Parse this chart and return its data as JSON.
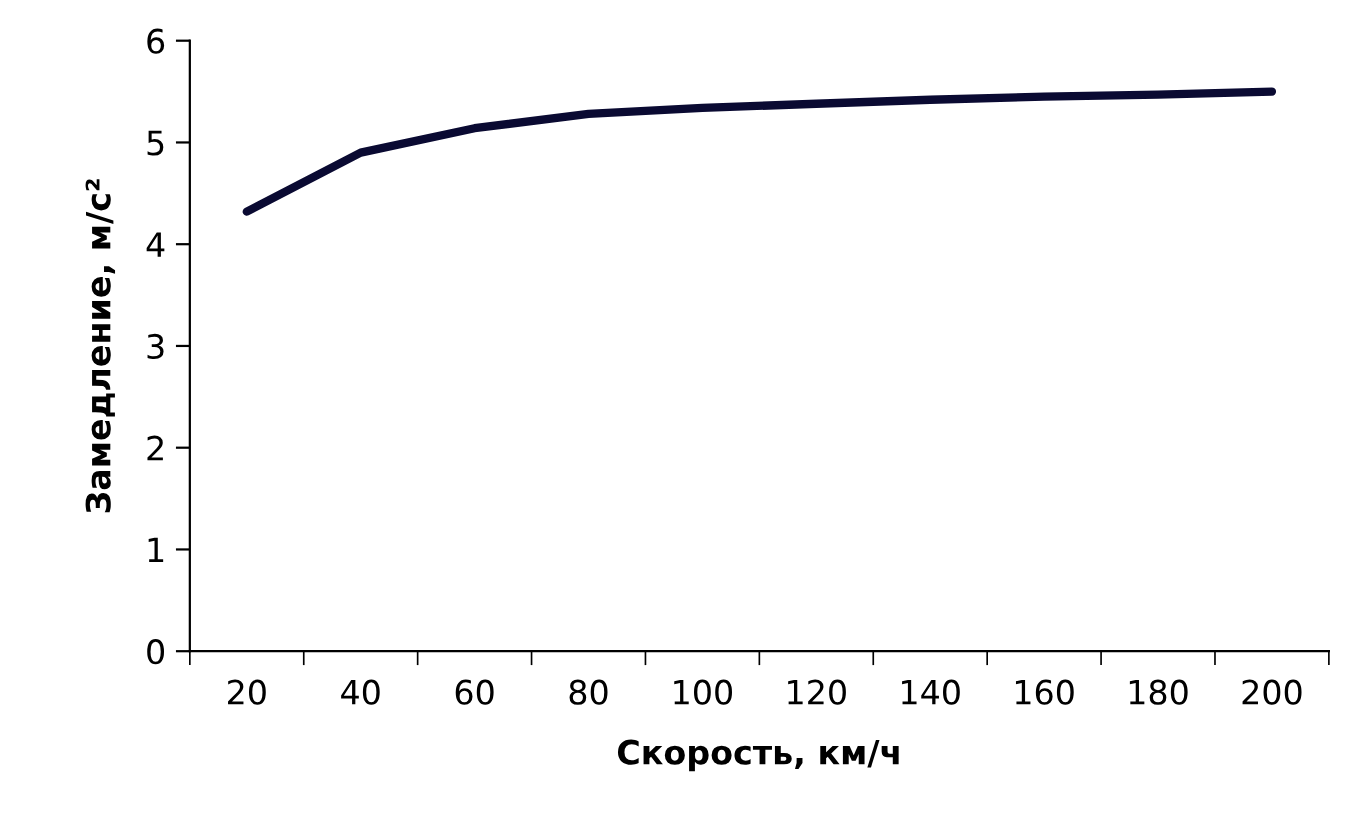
{
  "chart_data": {
    "type": "line",
    "xlabel": "Скорость, км/ч",
    "ylabel": "Замедление, м/с²",
    "categories": [
      "20",
      "40",
      "60",
      "80",
      "100",
      "120",
      "140",
      "160",
      "180",
      "200"
    ],
    "series": [
      {
        "color": "#0a0a32",
        "values": [
          4.32,
          4.9,
          5.14,
          5.28,
          5.34,
          5.38,
          5.42,
          5.45,
          5.47,
          5.5
        ]
      }
    ],
    "ylim": [
      0,
      6
    ],
    "yticks": [
      0,
      1,
      2,
      3,
      4,
      5,
      6
    ],
    "grid": false,
    "legend": false,
    "marker": "none",
    "line_style": "solid"
  }
}
